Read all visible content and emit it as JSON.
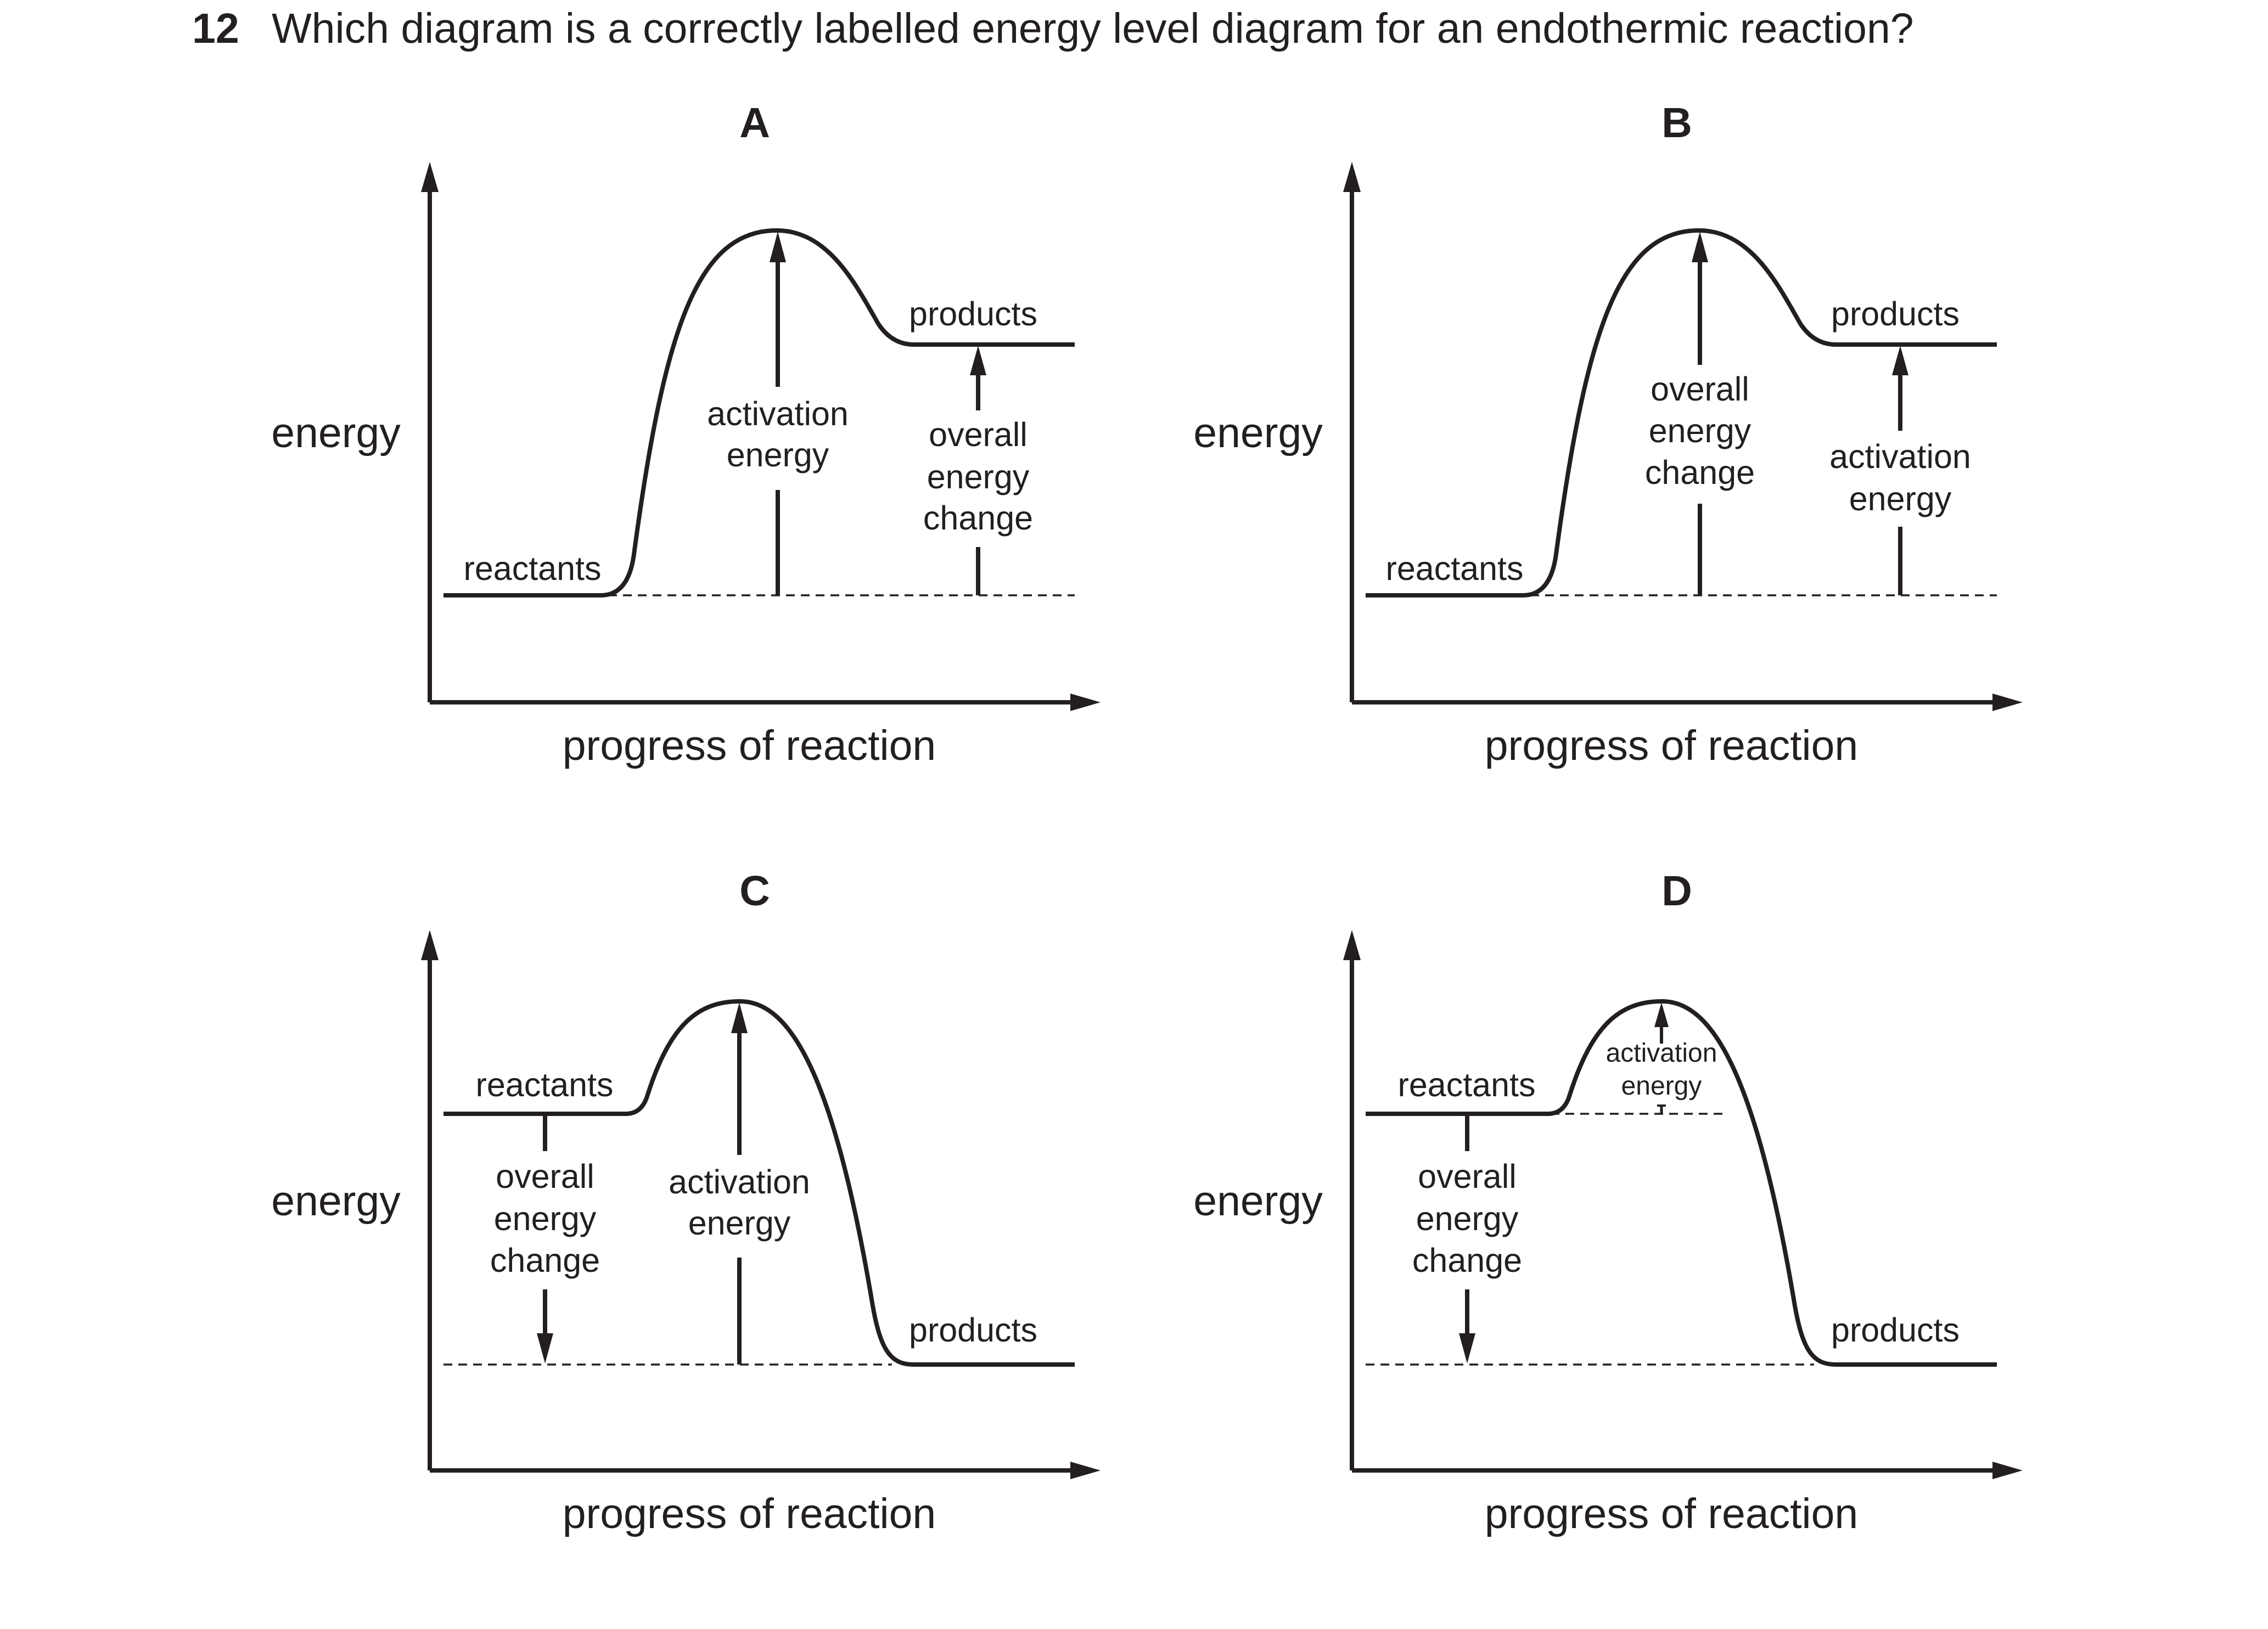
{
  "question": {
    "number": "12",
    "text": "Which diagram is a correctly labelled energy level diagram for an endothermic reaction?"
  },
  "diagrams": [
    {
      "letter": "A",
      "y_axis_label": "energy",
      "x_axis_label": "progress of reaction",
      "level_labels": {
        "start": "reactants",
        "end": "products"
      },
      "peak_arrow_label": [
        "activation",
        "energy"
      ],
      "side_arrow_label": [
        "overall",
        "energy",
        "change"
      ]
    },
    {
      "letter": "B",
      "y_axis_label": "energy",
      "x_axis_label": "progress of reaction",
      "level_labels": {
        "start": "reactants",
        "end": "products"
      },
      "peak_arrow_label": [
        "overall",
        "energy",
        "change"
      ],
      "side_arrow_label": [
        "activation",
        "energy"
      ]
    },
    {
      "letter": "C",
      "y_axis_label": "energy",
      "x_axis_label": "progress of reaction",
      "level_labels": {
        "start": "reactants",
        "end": "products"
      },
      "peak_arrow_label": [
        "activation",
        "energy"
      ],
      "side_arrow_label": [
        "overall",
        "energy",
        "change"
      ]
    },
    {
      "letter": "D",
      "y_axis_label": "energy",
      "x_axis_label": "progress of reaction",
      "level_labels": {
        "start": "reactants",
        "end": "products"
      },
      "peak_arrow_label": [
        "activation",
        "energy"
      ],
      "side_arrow_label": [
        "overall",
        "energy",
        "change"
      ]
    }
  ],
  "colors": {
    "ink": "#231f20",
    "background": "#ffffff"
  }
}
